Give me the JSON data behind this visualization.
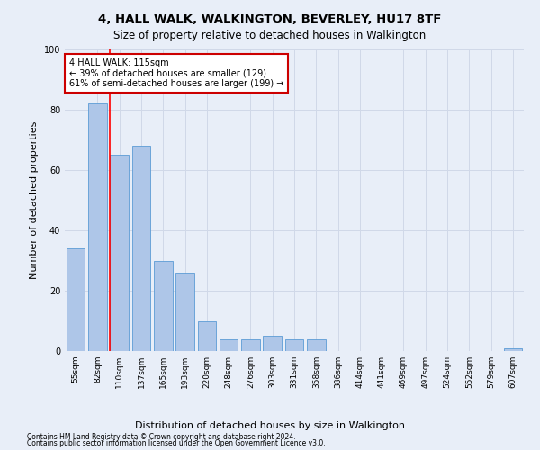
{
  "title": "4, HALL WALK, WALKINGTON, BEVERLEY, HU17 8TF",
  "subtitle": "Size of property relative to detached houses in Walkington",
  "xlabel": "Distribution of detached houses by size in Walkington",
  "ylabel": "Number of detached properties",
  "categories": [
    "55sqm",
    "82sqm",
    "110sqm",
    "137sqm",
    "165sqm",
    "193sqm",
    "220sqm",
    "248sqm",
    "276sqm",
    "303sqm",
    "331sqm",
    "358sqm",
    "386sqm",
    "414sqm",
    "441sqm",
    "469sqm",
    "497sqm",
    "524sqm",
    "552sqm",
    "579sqm",
    "607sqm"
  ],
  "values": [
    34,
    82,
    65,
    68,
    30,
    26,
    10,
    4,
    4,
    5,
    4,
    4,
    0,
    0,
    0,
    0,
    0,
    0,
    0,
    0,
    1
  ],
  "bar_color": "#aec6e8",
  "bar_edge_color": "#5b9bd5",
  "grid_color": "#d0d8e8",
  "background_color": "#e8eef8",
  "red_line_index": 2,
  "ylim": [
    0,
    100
  ],
  "annotation_text": "4 HALL WALK: 115sqm\n← 39% of detached houses are smaller (129)\n61% of semi-detached houses are larger (199) →",
  "annotation_box_color": "#ffffff",
  "annotation_box_edge": "#cc0000",
  "footer_line1": "Contains HM Land Registry data © Crown copyright and database right 2024.",
  "footer_line2": "Contains public sector information licensed under the Open Government Licence v3.0.",
  "title_fontsize": 9.5,
  "subtitle_fontsize": 8.5,
  "tick_fontsize": 6.5,
  "ylabel_fontsize": 8,
  "xlabel_fontsize": 8,
  "annotation_fontsize": 7,
  "footer_fontsize": 5.5
}
